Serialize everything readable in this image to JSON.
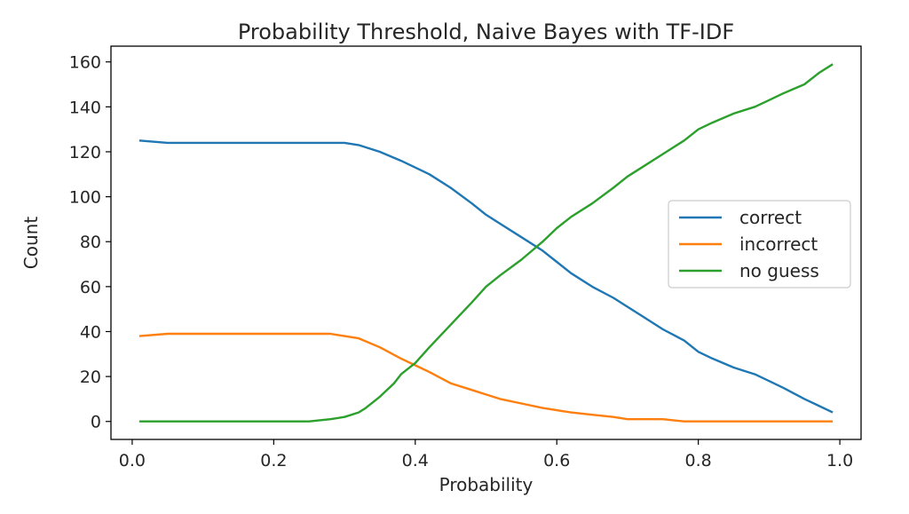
{
  "chart_data": {
    "type": "line",
    "title": "Probability Threshold, Naive Bayes with TF-IDF",
    "xlabel": "Probability",
    "ylabel": "Count",
    "xlim": [
      -0.03,
      1.03
    ],
    "ylim": [
      -8,
      167
    ],
    "xticks": [
      0.0,
      0.2,
      0.4,
      0.6,
      0.8,
      1.0
    ],
    "xtick_labels": [
      "0.0",
      "0.2",
      "0.4",
      "0.6",
      "0.8",
      "1.0"
    ],
    "yticks": [
      0,
      20,
      40,
      60,
      80,
      100,
      120,
      140,
      160
    ],
    "ytick_labels": [
      "0",
      "20",
      "40",
      "60",
      "80",
      "100",
      "120",
      "140",
      "160"
    ],
    "grid": false,
    "legend_position": "center-right",
    "series": [
      {
        "name": "correct",
        "color": "#1f77b4",
        "x": [
          0.01,
          0.05,
          0.1,
          0.15,
          0.2,
          0.25,
          0.28,
          0.3,
          0.32,
          0.35,
          0.38,
          0.4,
          0.42,
          0.45,
          0.48,
          0.5,
          0.52,
          0.55,
          0.58,
          0.6,
          0.62,
          0.65,
          0.68,
          0.7,
          0.72,
          0.75,
          0.78,
          0.8,
          0.82,
          0.85,
          0.88,
          0.9,
          0.92,
          0.95,
          0.97,
          0.99
        ],
        "y": [
          125,
          124,
          124,
          124,
          124,
          124,
          124,
          124,
          123,
          120,
          116,
          113,
          110,
          104,
          97,
          92,
          88,
          82,
          76,
          71,
          66,
          60,
          55,
          51,
          47,
          41,
          36,
          31,
          28,
          24,
          21,
          18,
          15,
          10,
          7,
          4
        ]
      },
      {
        "name": "incorrect",
        "color": "#ff7f0e",
        "x": [
          0.01,
          0.05,
          0.1,
          0.15,
          0.2,
          0.25,
          0.28,
          0.3,
          0.32,
          0.35,
          0.38,
          0.4,
          0.42,
          0.45,
          0.48,
          0.5,
          0.52,
          0.55,
          0.58,
          0.6,
          0.62,
          0.65,
          0.68,
          0.7,
          0.72,
          0.75,
          0.78,
          0.8,
          0.85,
          0.9,
          0.95,
          0.99
        ],
        "y": [
          38,
          39,
          39,
          39,
          39,
          39,
          39,
          38,
          37,
          33,
          28,
          25,
          22,
          17,
          14,
          12,
          10,
          8,
          6,
          5,
          4,
          3,
          2,
          1,
          1,
          1,
          0,
          0,
          0,
          0,
          0,
          0
        ]
      },
      {
        "name": "no guess",
        "color": "#2ca02c",
        "x": [
          0.01,
          0.1,
          0.2,
          0.25,
          0.28,
          0.3,
          0.32,
          0.33,
          0.35,
          0.37,
          0.38,
          0.4,
          0.42,
          0.45,
          0.48,
          0.5,
          0.52,
          0.55,
          0.58,
          0.6,
          0.62,
          0.65,
          0.68,
          0.7,
          0.72,
          0.75,
          0.78,
          0.8,
          0.82,
          0.85,
          0.88,
          0.9,
          0.92,
          0.95,
          0.97,
          0.99
        ],
        "y": [
          0,
          0,
          0,
          0,
          1,
          2,
          4,
          6,
          11,
          17,
          21,
          26,
          33,
          43,
          53,
          60,
          65,
          72,
          80,
          86,
          91,
          97,
          104,
          109,
          113,
          119,
          125,
          130,
          133,
          137,
          140,
          143,
          146,
          150,
          155,
          159
        ]
      }
    ]
  }
}
